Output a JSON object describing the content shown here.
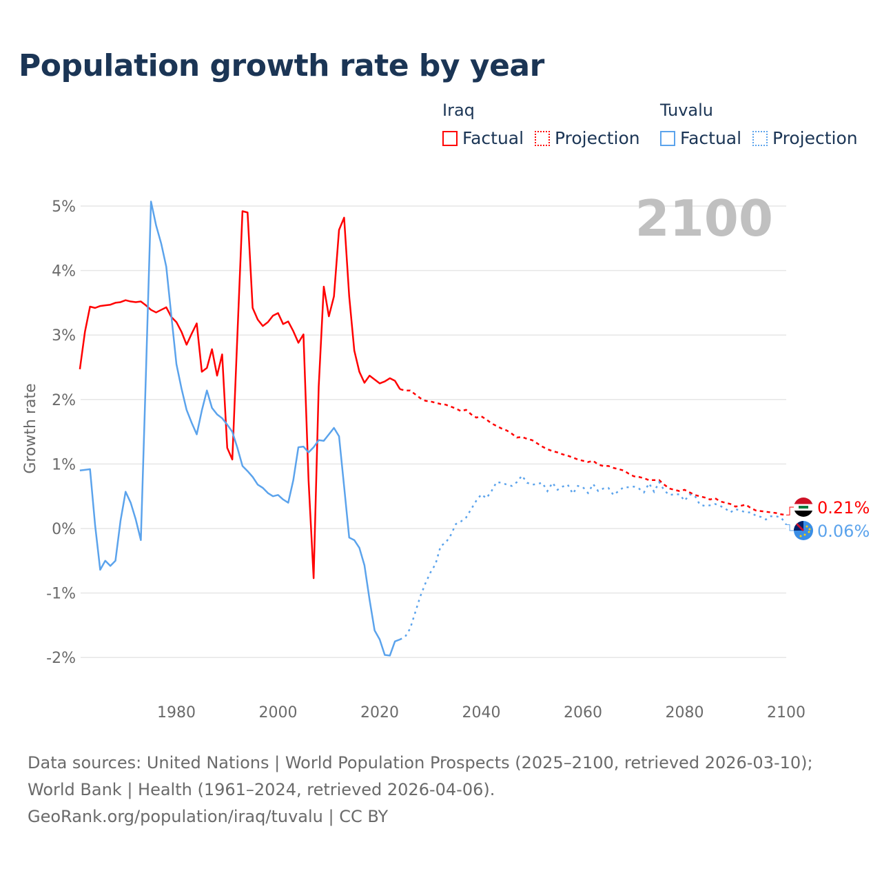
{
  "title": "Population growth rate by year",
  "legend": {
    "groups": [
      {
        "name": "Iraq",
        "color": "#ff0000",
        "items": [
          "Factual",
          "Projection"
        ]
      },
      {
        "name": "Tuvalu",
        "color": "#5ba3ec",
        "items": [
          "Factual",
          "Projection"
        ]
      }
    ]
  },
  "chart_data": {
    "type": "line",
    "title": "Population growth rate by year",
    "ylabel": "Growth rate",
    "xlabel": "",
    "xlim": [
      1961,
      2100
    ],
    "ylim": [
      -2.4,
      5.2
    ],
    "x_ticks": [
      "1980",
      "2000",
      "2020",
      "2040",
      "2060",
      "2080",
      "2100"
    ],
    "y_ticks": [
      "5%",
      "4%",
      "3%",
      "2%",
      "1%",
      "0%",
      "-1%",
      "-2%"
    ],
    "year_overlay": "2100",
    "series": [
      {
        "name": "Iraq",
        "color": "#ff0000",
        "factual_start": 1961,
        "factual": [
          2.47,
          3.05,
          3.44,
          3.42,
          3.45,
          3.46,
          3.47,
          3.5,
          3.51,
          3.54,
          3.52,
          3.51,
          3.52,
          3.46,
          3.39,
          3.35,
          3.39,
          3.43,
          3.28,
          3.2,
          3.05,
          2.85,
          3.02,
          3.18,
          2.43,
          2.49,
          2.78,
          2.37,
          2.7,
          1.25,
          1.07,
          3.0,
          4.92,
          4.9,
          3.42,
          3.24,
          3.14,
          3.2,
          3.3,
          3.34,
          3.17,
          3.21,
          3.06,
          2.88,
          3.01,
          0.75,
          -0.77,
          2.2,
          3.75,
          3.29,
          3.6,
          4.63,
          4.82,
          3.6,
          2.76,
          2.43,
          2.26,
          2.37,
          2.31,
          2.25,
          2.28,
          2.33,
          2.29,
          2.16
        ],
        "projection_start": 2025,
        "projection": [
          2.14,
          2.14,
          2.08,
          2.02,
          1.98,
          1.97,
          1.95,
          1.93,
          1.92,
          1.89,
          1.86,
          1.82,
          1.84,
          1.77,
          1.72,
          1.74,
          1.69,
          1.63,
          1.59,
          1.55,
          1.52,
          1.47,
          1.41,
          1.42,
          1.39,
          1.37,
          1.32,
          1.27,
          1.23,
          1.2,
          1.18,
          1.15,
          1.13,
          1.1,
          1.07,
          1.05,
          1.03,
          1.05,
          0.99,
          0.97,
          0.97,
          0.94,
          0.92,
          0.9,
          0.85,
          0.81,
          0.8,
          0.78,
          0.75,
          0.75,
          0.75,
          0.68,
          0.62,
          0.6,
          0.58,
          0.6,
          0.56,
          0.52,
          0.5,
          0.48,
          0.45,
          0.47,
          0.42,
          0.4,
          0.38,
          0.34,
          0.35,
          0.37,
          0.32,
          0.28,
          0.27,
          0.26,
          0.25,
          0.24,
          0.22,
          0.21
        ],
        "end_label": "0.21%"
      },
      {
        "name": "Tuvalu",
        "color": "#5ba3ec",
        "factual_start": 1961,
        "factual": [
          0.9,
          0.91,
          0.92,
          0.05,
          -0.64,
          -0.5,
          -0.58,
          -0.5,
          0.12,
          0.57,
          0.4,
          0.14,
          -0.18,
          2.4,
          5.07,
          4.7,
          4.42,
          4.06,
          3.3,
          2.55,
          2.17,
          1.84,
          1.64,
          1.46,
          1.83,
          2.14,
          1.87,
          1.77,
          1.71,
          1.61,
          1.5,
          1.25,
          0.97,
          0.89,
          0.8,
          0.68,
          0.63,
          0.55,
          0.5,
          0.52,
          0.45,
          0.4,
          0.75,
          1.26,
          1.27,
          1.18,
          1.26,
          1.37,
          1.36,
          1.46,
          1.56,
          1.43,
          0.65,
          -0.14,
          -0.18,
          -0.3,
          -0.57,
          -1.1,
          -1.58,
          -1.72,
          -1.96,
          -1.97,
          -1.75,
          -1.72
        ],
        "projection_start": 2025,
        "projection": [
          -1.68,
          -1.55,
          -1.3,
          -1.05,
          -0.85,
          -0.68,
          -0.55,
          -0.27,
          -0.22,
          -0.1,
          0.07,
          0.11,
          0.17,
          0.3,
          0.43,
          0.53,
          0.47,
          0.58,
          0.72,
          0.71,
          0.68,
          0.66,
          0.72,
          0.82,
          0.71,
          0.68,
          0.69,
          0.71,
          0.58,
          0.71,
          0.6,
          0.65,
          0.68,
          0.54,
          0.66,
          0.64,
          0.55,
          0.69,
          0.58,
          0.62,
          0.63,
          0.52,
          0.58,
          0.64,
          0.64,
          0.65,
          0.62,
          0.56,
          0.7,
          0.57,
          0.72,
          0.59,
          0.52,
          0.53,
          0.53,
          0.43,
          0.53,
          0.51,
          0.37,
          0.35,
          0.36,
          0.38,
          0.35,
          0.31,
          0.25,
          0.3,
          0.28,
          0.25,
          0.25,
          0.2,
          0.18,
          0.14,
          0.19,
          0.19,
          0.17,
          0.06
        ],
        "end_label": "0.06%"
      }
    ]
  },
  "footer": {
    "sources": "Data sources: United Nations | World Population Prospects (2025–2100, retrieved 2026-03-10); World Bank | Health (1961–2024, retrieved 2026-04-06).",
    "credit": "GeoRank.org/population/iraq/tuvalu | CC BY"
  }
}
